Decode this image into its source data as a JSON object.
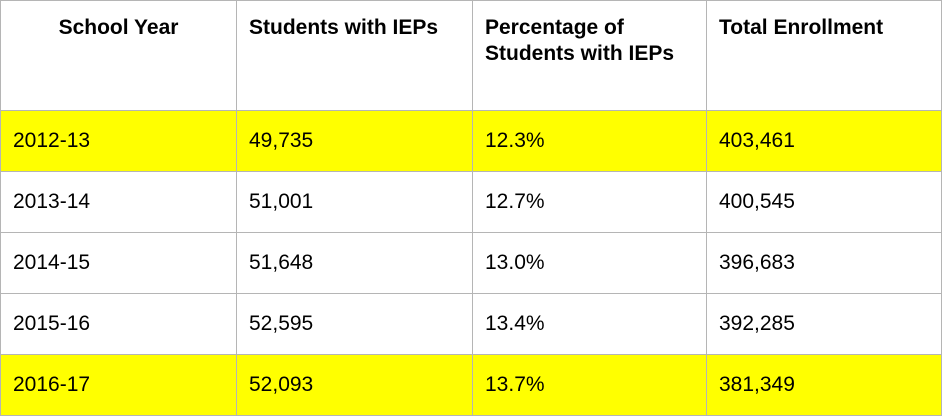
{
  "table": {
    "headers": [
      "School Year",
      "Students with IEPs",
      "Percentage of Students with IEPs",
      "Total Enrollment"
    ],
    "highlight_color": "#ffff00",
    "rows": [
      {
        "highlighted": true,
        "cells": [
          "2012-13",
          "49,735",
          "12.3%",
          "403,461"
        ]
      },
      {
        "highlighted": false,
        "cells": [
          "2013-14",
          "51,001",
          "12.7%",
          "400,545"
        ]
      },
      {
        "highlighted": false,
        "cells": [
          "2014-15",
          "51,648",
          "13.0%",
          "396,683"
        ]
      },
      {
        "highlighted": false,
        "cells": [
          "2015-16",
          "52,595",
          "13.4%",
          "392,285"
        ]
      },
      {
        "highlighted": true,
        "cells": [
          "2016-17",
          "52,093",
          "13.7%",
          "381,349"
        ]
      }
    ]
  }
}
